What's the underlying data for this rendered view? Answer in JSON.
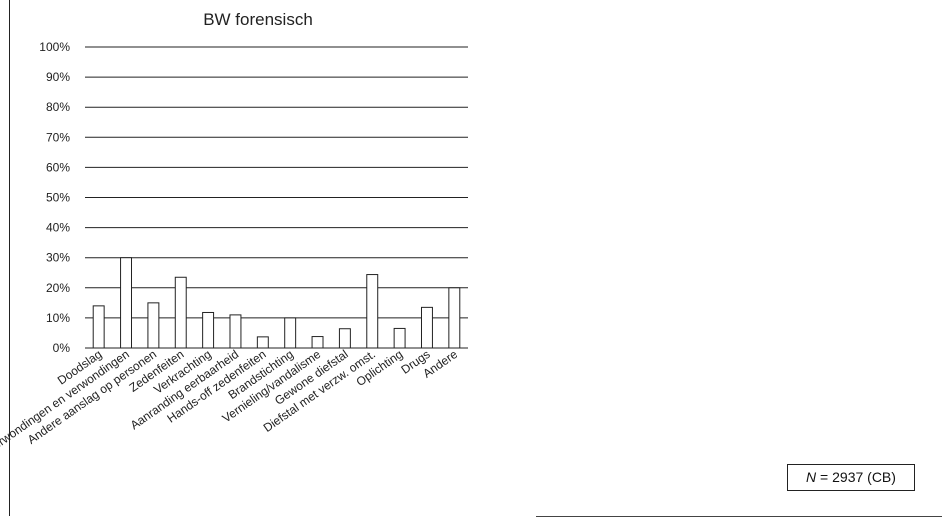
{
  "chart_data": {
    "type": "bar",
    "title": "BW forensisch",
    "xlabel": "",
    "ylabel": "",
    "ylim": [
      0,
      100
    ],
    "yticks": [
      "0%",
      "10%",
      "20%",
      "30%",
      "40%",
      "50%",
      "60%",
      "70%",
      "80%",
      "90%",
      "100%"
    ],
    "grid": true,
    "legend": "none",
    "categories": [
      "Doodslag",
      "Verwondingen en verwondingen",
      "Andere aanslag op personen",
      "Zedenfeiten",
      "Verkrachting",
      "Aanranding eerbaarheid",
      "Hands-off zedenfeiten",
      "Brandstichting",
      "Vernieling/vandalisme",
      "Gewone diefstal",
      "Diefstal met verzw. omst.",
      "Oplichting",
      "Drugs",
      "Andere"
    ],
    "values": [
      14,
      30,
      15,
      23.5,
      11.8,
      11,
      3.7,
      10,
      3.8,
      6.4,
      24.4,
      6.5,
      13.5,
      20
    ],
    "bar_color": "#ffffff",
    "edge_color": "#222222"
  },
  "annotation": {
    "n_label": "N",
    "n_text": " = 2937 (CB)"
  }
}
